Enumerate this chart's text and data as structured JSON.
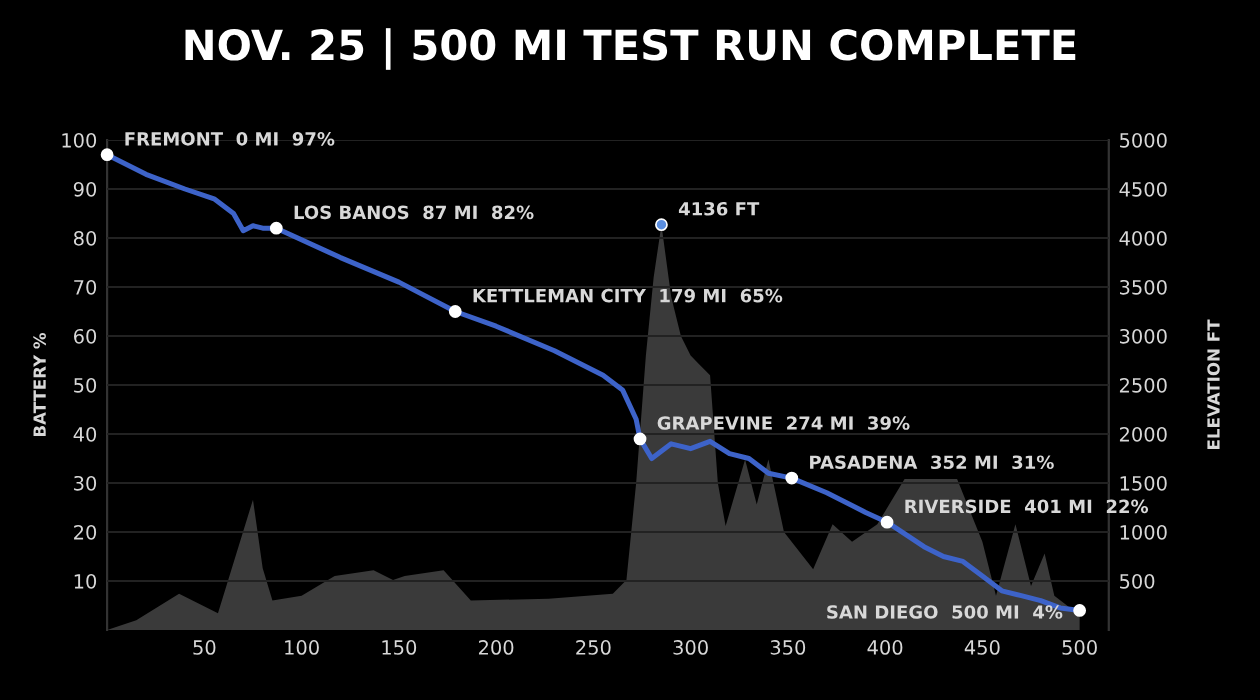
{
  "chart_data": {
    "type": "line",
    "title": "NOV. 25 | 500 MI TEST RUN COMPLETE",
    "ylabel": "BATTERY %",
    "y2label": "ELEVATION FT",
    "xlim": [
      0,
      515
    ],
    "xticks": [
      50,
      100,
      150,
      200,
      250,
      300,
      350,
      400,
      450,
      500
    ],
    "ylim": [
      0,
      100
    ],
    "yticks": [
      10,
      20,
      30,
      40,
      50,
      60,
      70,
      80,
      90,
      100
    ],
    "y2lim": [
      0,
      5000
    ],
    "y2ticks": [
      500,
      1000,
      1500,
      2000,
      2500,
      3000,
      3500,
      4000,
      4500,
      5000
    ],
    "grid": "y",
    "legend": false,
    "series": [
      {
        "type": "area",
        "axis": "y2",
        "color": "#3a3a3a",
        "x": [
          0,
          15,
          37,
          57,
          75,
          80,
          85,
          100,
          117,
          137,
          147,
          153,
          173,
          187,
          227,
          260,
          267,
          272,
          277,
          281,
          285,
          290,
          295,
          300,
          305,
          310,
          314,
          318,
          328,
          334,
          340,
          348,
          363,
          373,
          383,
          396,
          410,
          437,
          450,
          457,
          467,
          475,
          482,
          487,
          500
        ],
        "values": [
          0,
          100,
          370,
          170,
          1330,
          630,
          300,
          350,
          550,
          610,
          510,
          550,
          610,
          300,
          320,
          370,
          510,
          1500,
          2800,
          3600,
          4136,
          3400,
          3000,
          2800,
          2700,
          2600,
          1500,
          1060,
          1740,
          1280,
          1740,
          1000,
          620,
          1080,
          900,
          1080,
          1540,
          1540,
          900,
          350,
          1080,
          450,
          780,
          350,
          150
        ]
      },
      {
        "axis": "y",
        "color": "#3d63c9",
        "x": [
          0,
          20,
          40,
          55,
          65,
          70,
          75,
          80,
          87,
          120,
          150,
          179,
          200,
          230,
          255,
          265,
          272,
          274,
          280,
          290,
          300,
          310,
          320,
          330,
          340,
          352,
          370,
          390,
          401,
          420,
          430,
          440,
          450,
          460,
          470,
          480,
          490,
          500
        ],
        "values": [
          97,
          93,
          90,
          88,
          85,
          81.5,
          82.5,
          82,
          82,
          76,
          71,
          65,
          62,
          57,
          52,
          49,
          43,
          39,
          35,
          38,
          37,
          38.5,
          36,
          35,
          32,
          31,
          28,
          24,
          22,
          17,
          15,
          14,
          11,
          8,
          7,
          6,
          4.5,
          4
        ]
      }
    ],
    "annotations": [
      {
        "text": "FREMONT  0 MI  97%",
        "x": 0,
        "y": 97
      },
      {
        "text": "LOS BANOS  87 MI  82%",
        "x": 87,
        "y": 82
      },
      {
        "text": "KETTLEMAN CITY  179 MI  65%",
        "x": 179,
        "y": 65
      },
      "4136 FT",
      {
        "text": "GRAPEVINE  274 MI  39%",
        "x": 274,
        "y": 39
      },
      {
        "text": "PASADENA  352 MI  31%",
        "x": 352,
        "y": 31
      },
      {
        "text": "RIVERSIDE  401 MI  22%",
        "x": 401,
        "y": 22
      },
      {
        "text": "SAN DIEGO  500 MI  4%",
        "x": 500,
        "y": 4
      }
    ]
  }
}
